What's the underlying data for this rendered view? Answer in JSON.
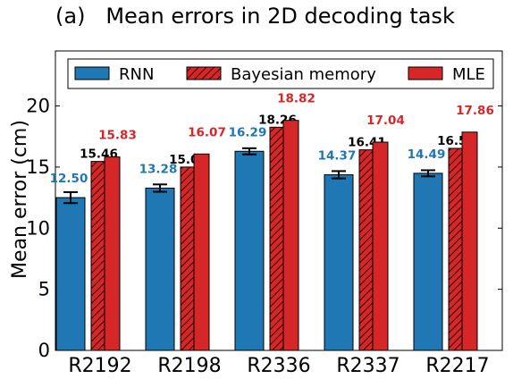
{
  "chart_data": {
    "type": "bar",
    "title": "(a)   Mean errors in 2D decoding task",
    "xlabel": "",
    "ylabel": "Mean error (cm)",
    "categories": [
      "R2192",
      "R2198",
      "R2336",
      "R2337",
      "R2217"
    ],
    "ylim": [
      0,
      24.5
    ],
    "yticks": [
      0,
      5,
      10,
      15,
      20
    ],
    "grid": false,
    "legend": {
      "placement": "top",
      "columns": 3
    },
    "series": [
      {
        "name": "RNN",
        "values": [
          12.5,
          13.28,
          16.29,
          14.37,
          14.49
        ],
        "labels": [
          "12.50",
          "13.28",
          "16.29",
          "14.37",
          "14.49"
        ],
        "errors": [
          0.45,
          0.3,
          0.25,
          0.3,
          0.25
        ],
        "color": "#1f77b4",
        "label_color": "#1f77b4",
        "hatch": false
      },
      {
        "name": "Bayesian memory",
        "values": [
          15.46,
          15.0,
          18.26,
          16.41,
          16.53
        ],
        "labels": [
          "15.46",
          "15.00",
          "18.26",
          "16.41",
          "16.53"
        ],
        "color": "#d62728",
        "label_color": "#000000",
        "hatch": true
      },
      {
        "name": "MLE",
        "values": [
          15.83,
          16.07,
          18.82,
          17.04,
          17.86
        ],
        "labels": [
          "15.83",
          "16.07",
          "18.82",
          "17.04",
          "17.86"
        ],
        "color": "#d62728",
        "label_color": "#d62728",
        "hatch": false
      }
    ]
  }
}
